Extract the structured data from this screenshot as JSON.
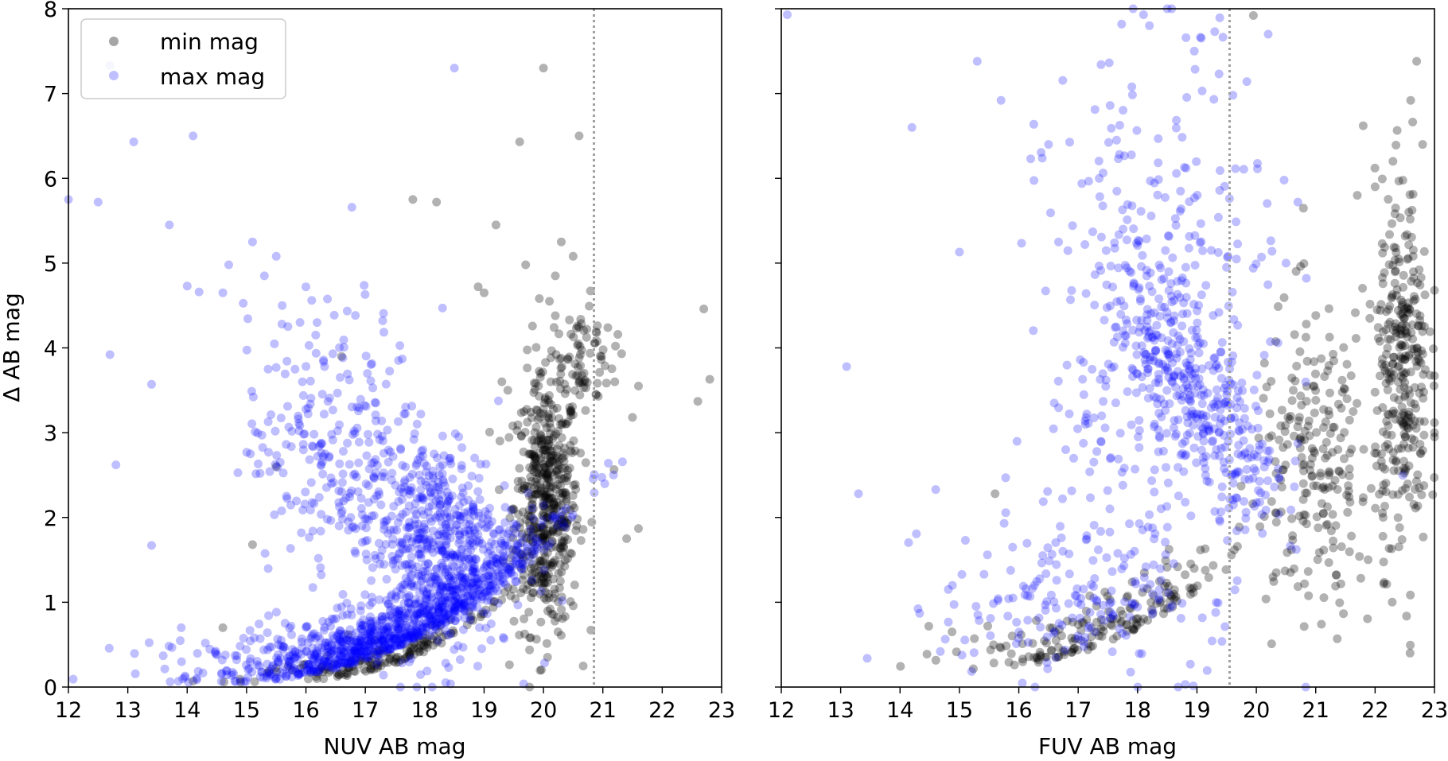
{
  "chart_data": [
    {
      "type": "scatter",
      "panel": "left",
      "xlabel": "NUV AB mag",
      "ylabel": "Δ AB mag",
      "xlim": [
        12,
        23
      ],
      "ylim": [
        0,
        8
      ],
      "xticks": [
        12,
        13,
        14,
        15,
        16,
        17,
        18,
        19,
        20,
        21,
        22,
        23
      ],
      "yticks": [
        0,
        1,
        2,
        3,
        4,
        5,
        6,
        7,
        8
      ],
      "limit_line_x": 20.85,
      "legend": {
        "position": "upper-left",
        "entries": [
          {
            "label": "min mag",
            "color": "#000000"
          },
          {
            "label": "max mag",
            "color": "#0000ff"
          }
        ]
      },
      "series": [
        {
          "name": "min mag",
          "color": "#000000",
          "outliers": [
            [
              20.0,
              7.3
            ],
            [
              19.6,
              6.43
            ],
            [
              20.6,
              6.5
            ],
            [
              17.8,
              5.75
            ],
            [
              18.2,
              5.72
            ],
            [
              19.2,
              5.45
            ],
            [
              20.3,
              5.25
            ],
            [
              20.5,
              5.08
            ],
            [
              20.2,
              4.85
            ],
            [
              20.1,
              4.55
            ],
            [
              19.7,
              4.98
            ],
            [
              18.9,
              4.72
            ],
            [
              19.0,
              4.65
            ],
            [
              22.7,
              4.46
            ],
            [
              22.8,
              3.63
            ],
            [
              22.6,
              3.37
            ],
            [
              21.6,
              3.55
            ],
            [
              21.5,
              3.18
            ],
            [
              21.2,
              3.6
            ],
            [
              15.5,
              2.6
            ],
            [
              16.6,
              3.9
            ],
            [
              14.1,
              0.07
            ],
            [
              14.6,
              0.7
            ],
            [
              15.1,
              1.68
            ],
            [
              21.6,
              1.87
            ],
            [
              21.4,
              1.75
            ],
            [
              19.4,
              3.5
            ],
            [
              19.3,
              3.6
            ]
          ],
          "clusters": [
            {
              "count": 520,
              "x": [
                19.5,
                20.6
              ],
              "y": [
                0.8,
                3.5
              ],
              "trend": "vertical cluster near NUV 20"
            },
            {
              "count": 160,
              "x": [
                15.0,
                19.8
              ],
              "y": [
                0.05,
                1.3
              ],
              "trend": "curving up with magnitude"
            },
            {
              "count": 80,
              "x": [
                20.0,
                21.2
              ],
              "y": [
                3.3,
                4.5
              ]
            }
          ]
        },
        {
          "name": "max mag",
          "color": "#0000ff",
          "outliers": [
            [
              12.0,
              5.75
            ],
            [
              12.5,
              5.72
            ],
            [
              13.1,
              6.43
            ],
            [
              14.1,
              6.5
            ],
            [
              13.7,
              5.45
            ],
            [
              12.7,
              3.92
            ],
            [
              13.4,
              3.57
            ],
            [
              12.8,
              2.62
            ],
            [
              13.4,
              1.67
            ],
            [
              13.9,
              0.7
            ],
            [
              18.5,
              7.3
            ],
            [
              12.7,
              7.33
            ],
            [
              15.1,
              5.25
            ],
            [
              15.5,
              5.08
            ],
            [
              15.3,
              4.85
            ],
            [
              14.7,
              4.98
            ],
            [
              14.6,
              4.65
            ],
            [
              14.0,
              4.73
            ],
            [
              14.2,
              4.66
            ],
            [
              16.0,
              4.72
            ],
            [
              15.6,
              4.5
            ],
            [
              15.9,
              4.3
            ],
            [
              18.3,
              4.47
            ]
          ],
          "clusters": [
            {
              "count": 900,
              "x": [
                14.5,
                20.0
              ],
              "y": [
                0.05,
                1.6
              ],
              "trend": "dense band rising with magnitude"
            },
            {
              "count": 600,
              "x": [
                17.0,
                19.5
              ],
              "y": [
                0.5,
                2.8
              ],
              "trend": "main cloud peaking near NUV 18.5"
            },
            {
              "count": 250,
              "x": [
                15.0,
                18.0
              ],
              "y": [
                1.5,
                4.3
              ],
              "trend": "diffuse upper cloud"
            }
          ]
        }
      ]
    },
    {
      "type": "scatter",
      "panel": "right",
      "xlabel": "FUV AB mag",
      "ylabel": "",
      "xlim": [
        12,
        23
      ],
      "ylim": [
        0,
        8
      ],
      "xticks": [
        12,
        13,
        14,
        15,
        16,
        17,
        18,
        19,
        20,
        21,
        22,
        23
      ],
      "limit_line_x": 19.55,
      "series": [
        {
          "name": "min mag",
          "color": "#000000",
          "outliers": [
            [
              19.95,
              7.92
            ],
            [
              22.7,
              7.38
            ],
            [
              22.6,
              6.92
            ],
            [
              22.8,
              6.4
            ],
            [
              21.8,
              6.62
            ],
            [
              22.3,
              6.2
            ],
            [
              15.6,
              2.28
            ],
            [
              23.0,
              3.0
            ],
            [
              23.0,
              2.95
            ],
            [
              22.0,
              5.9
            ],
            [
              21.7,
              5.8
            ]
          ],
          "clusters": [
            {
              "count": 320,
              "x": [
                22.0,
                22.9
              ],
              "y": [
                1.8,
                5.7
              ],
              "trend": "vertical column near FUV 22.4"
            },
            {
              "count": 220,
              "x": [
                20.0,
                22.0
              ],
              "y": [
                1.0,
                4.3
              ]
            },
            {
              "count": 180,
              "x": [
                15.0,
                20.0
              ],
              "y": [
                0.2,
                1.7
              ],
              "trend": "lower band rising with magnitude"
            }
          ]
        },
        {
          "name": "max mag",
          "color": "#0000ff",
          "outliers": [
            [
              12.1,
              7.93
            ],
            [
              13.1,
              3.78
            ],
            [
              13.3,
              2.28
            ],
            [
              14.2,
              6.6
            ],
            [
              14.6,
              2.33
            ],
            [
              15.0,
              5.13
            ],
            [
              15.1,
              1.73
            ],
            [
              15.3,
              7.38
            ],
            [
              15.7,
              6.92
            ],
            [
              16.5,
              6.4
            ],
            [
              16.2,
              6.23
            ],
            [
              18.1,
              7.93
            ],
            [
              18.2,
              7.8
            ],
            [
              19.3,
              7.73
            ],
            [
              20.2,
              7.7
            ],
            [
              20.7,
              5.72
            ],
            [
              20.5,
              5.0
            ]
          ],
          "clusters": [
            {
              "count": 450,
              "x": [
                16.5,
                20.3
              ],
              "y": [
                1.0,
                7.0
              ],
              "trend": "broad cloud"
            },
            {
              "count": 250,
              "x": [
                18.0,
                20.2
              ],
              "y": [
                2.3,
                4.3
              ],
              "trend": "dense diagonal streak"
            },
            {
              "count": 150,
              "x": [
                14.7,
                18.5
              ],
              "y": [
                0.2,
                1.8
              ],
              "trend": "lower band"
            }
          ]
        }
      ]
    }
  ]
}
